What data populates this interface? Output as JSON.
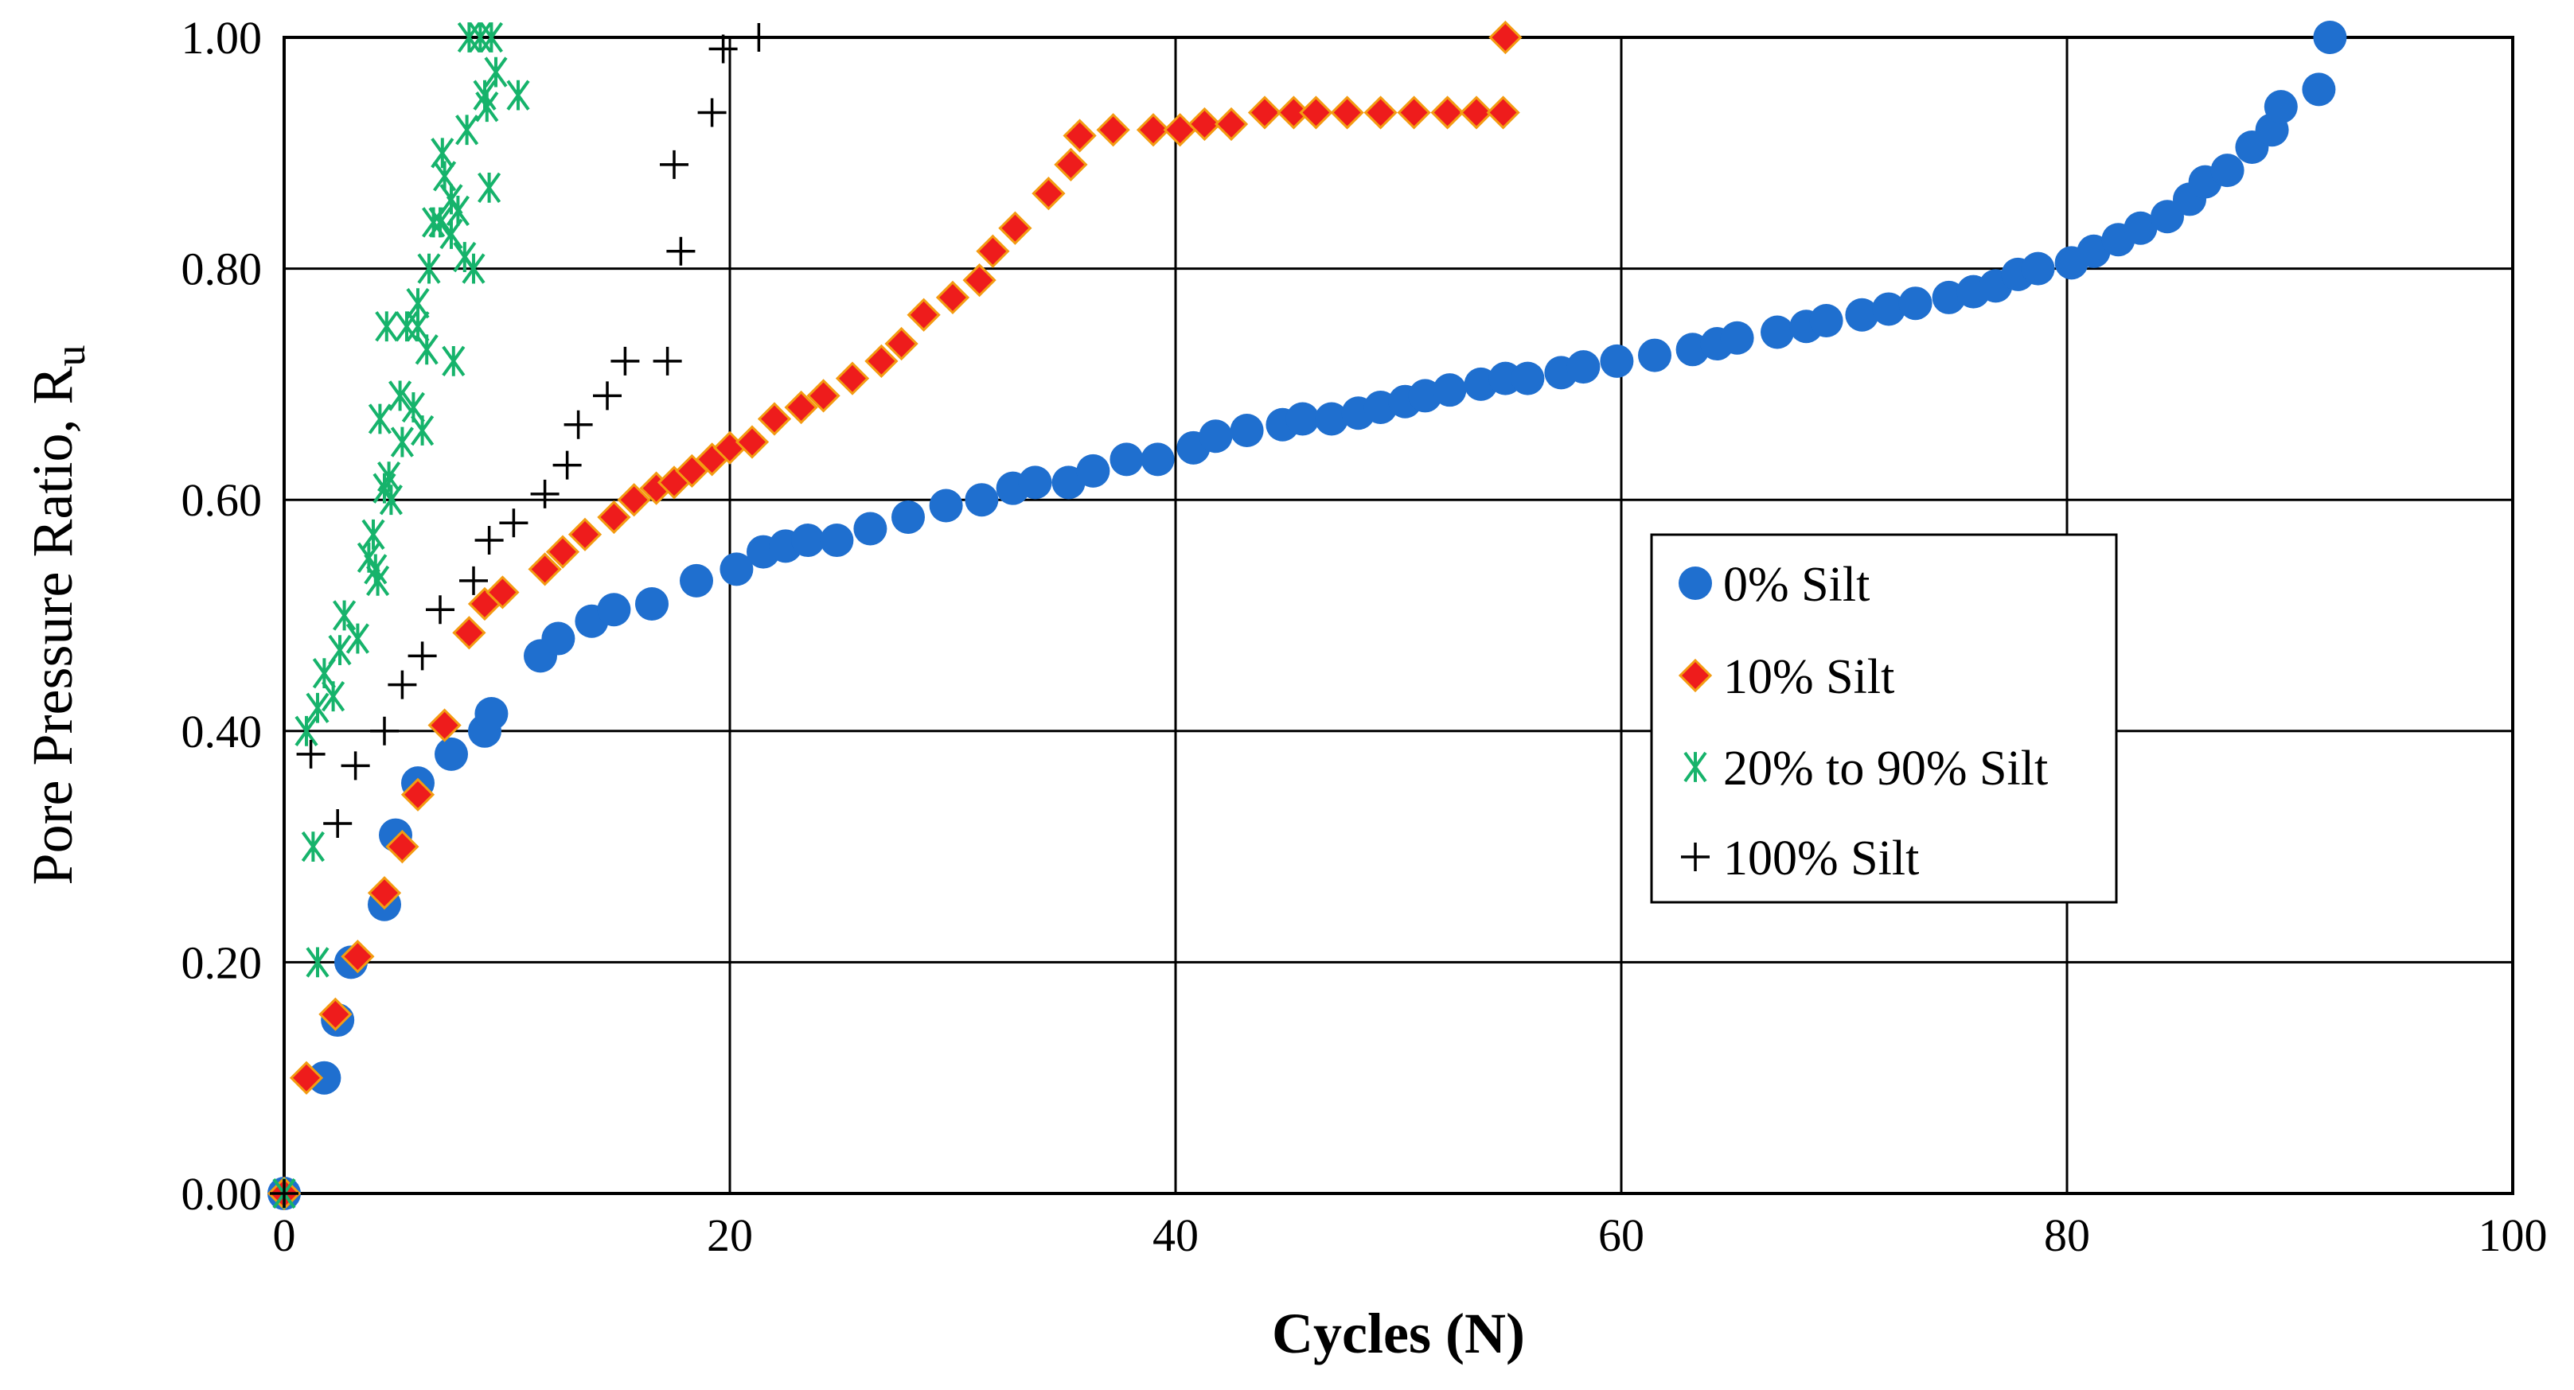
{
  "chart_data": {
    "type": "scatter",
    "xlabel": "Cycles (N)",
    "ylabel": "Pore Pressure Ratio, R",
    "ylabel_sub": "u",
    "xlim": [
      0,
      100
    ],
    "ylim": [
      0,
      1.0
    ],
    "x_ticks": [
      "0",
      "20",
      "40",
      "60",
      "80",
      "100"
    ],
    "y_ticks": [
      "0.00",
      "0.20",
      "0.40",
      "0.60",
      "0.80",
      "1.00"
    ],
    "grid": true,
    "legend_position": "center-right",
    "series": [
      {
        "name": "0% Silt",
        "marker": "circle",
        "color": "#1f6fcf",
        "points": [
          [
            0,
            0.0
          ],
          [
            1.8,
            0.1
          ],
          [
            2.4,
            0.15
          ],
          [
            3,
            0.2
          ],
          [
            4.5,
            0.25
          ],
          [
            5,
            0.31
          ],
          [
            6,
            0.355
          ],
          [
            7.5,
            0.38
          ],
          [
            9,
            0.4
          ],
          [
            9.3,
            0.415
          ],
          [
            11.5,
            0.465
          ],
          [
            12.3,
            0.48
          ],
          [
            13.8,
            0.495
          ],
          [
            14.8,
            0.505
          ],
          [
            16.5,
            0.51
          ],
          [
            18.5,
            0.53
          ],
          [
            20.3,
            0.54
          ],
          [
            21.5,
            0.555
          ],
          [
            22.5,
            0.56
          ],
          [
            23.5,
            0.565
          ],
          [
            24.8,
            0.565
          ],
          [
            26.3,
            0.575
          ],
          [
            28,
            0.585
          ],
          [
            29.7,
            0.595
          ],
          [
            31.3,
            0.6
          ],
          [
            32.7,
            0.61
          ],
          [
            33.7,
            0.615
          ],
          [
            35.2,
            0.615
          ],
          [
            36.3,
            0.625
          ],
          [
            37.8,
            0.635
          ],
          [
            39.2,
            0.635
          ],
          [
            40.8,
            0.645
          ],
          [
            41.8,
            0.655
          ],
          [
            43.2,
            0.66
          ],
          [
            44.8,
            0.665
          ],
          [
            45.7,
            0.67
          ],
          [
            47,
            0.67
          ],
          [
            48.2,
            0.675
          ],
          [
            49.2,
            0.68
          ],
          [
            50.3,
            0.685
          ],
          [
            51.2,
            0.69
          ],
          [
            52.3,
            0.695
          ],
          [
            53.7,
            0.7
          ],
          [
            54.8,
            0.705
          ],
          [
            55.8,
            0.705
          ],
          [
            57.3,
            0.71
          ],
          [
            58.3,
            0.715
          ],
          [
            59.8,
            0.72
          ],
          [
            61.5,
            0.725
          ],
          [
            63.2,
            0.73
          ],
          [
            64.3,
            0.735
          ],
          [
            65.2,
            0.74
          ],
          [
            67,
            0.745
          ],
          [
            68.3,
            0.75
          ],
          [
            69.2,
            0.755
          ],
          [
            70.8,
            0.76
          ],
          [
            72,
            0.765
          ],
          [
            73.2,
            0.77
          ],
          [
            74.7,
            0.775
          ],
          [
            75.8,
            0.78
          ],
          [
            76.8,
            0.785
          ],
          [
            77.8,
            0.795
          ],
          [
            78.7,
            0.8
          ],
          [
            80.2,
            0.805
          ],
          [
            81.2,
            0.815
          ],
          [
            82.3,
            0.825
          ],
          [
            83.3,
            0.835
          ],
          [
            84.5,
            0.845
          ],
          [
            85.5,
            0.86
          ],
          [
            86.2,
            0.875
          ],
          [
            87.2,
            0.885
          ],
          [
            88.3,
            0.905
          ],
          [
            89.2,
            0.92
          ],
          [
            89.6,
            0.94
          ],
          [
            91.3,
            0.955
          ],
          [
            91.8,
            1.0
          ]
        ]
      },
      {
        "name": "10% Silt",
        "marker": "diamond",
        "color": "#ee1c1c",
        "stroke": "#f39c12",
        "points": [
          [
            0,
            0.0
          ],
          [
            1,
            0.1
          ],
          [
            2.3,
            0.155
          ],
          [
            3.3,
            0.205
          ],
          [
            4.5,
            0.26
          ],
          [
            5.3,
            0.3
          ],
          [
            6,
            0.345
          ],
          [
            7.2,
            0.405
          ],
          [
            8.3,
            0.485
          ],
          [
            9,
            0.51
          ],
          [
            9.8,
            0.52
          ],
          [
            11.7,
            0.54
          ],
          [
            12.5,
            0.555
          ],
          [
            13.5,
            0.57
          ],
          [
            14.8,
            0.585
          ],
          [
            15.7,
            0.6
          ],
          [
            16.7,
            0.61
          ],
          [
            17.5,
            0.615
          ],
          [
            18.3,
            0.625
          ],
          [
            19.2,
            0.635
          ],
          [
            20,
            0.645
          ],
          [
            21,
            0.65
          ],
          [
            22,
            0.67
          ],
          [
            23.2,
            0.68
          ],
          [
            24.2,
            0.69
          ],
          [
            25.5,
            0.705
          ],
          [
            26.8,
            0.72
          ],
          [
            27.7,
            0.735
          ],
          [
            28.7,
            0.76
          ],
          [
            30,
            0.775
          ],
          [
            31.2,
            0.79
          ],
          [
            31.8,
            0.815
          ],
          [
            32.8,
            0.835
          ],
          [
            34.3,
            0.865
          ],
          [
            35.3,
            0.89
          ],
          [
            35.7,
            0.915
          ],
          [
            37.2,
            0.92
          ],
          [
            39,
            0.92
          ],
          [
            40.2,
            0.92
          ],
          [
            41.3,
            0.925
          ],
          [
            42.5,
            0.925
          ],
          [
            44,
            0.935
          ],
          [
            45.3,
            0.935
          ],
          [
            46.3,
            0.935
          ],
          [
            47.7,
            0.935
          ],
          [
            49.2,
            0.935
          ],
          [
            50.7,
            0.935
          ],
          [
            52.2,
            0.935
          ],
          [
            53.5,
            0.935
          ],
          [
            54.7,
            0.935
          ],
          [
            54.8,
            1.0
          ]
        ]
      },
      {
        "name": "20% to 90% Silt",
        "marker": "asterisk",
        "color": "#16b36b",
        "points": [
          [
            0,
            0.0
          ],
          [
            1,
            0.4
          ],
          [
            1.3,
            0.3
          ],
          [
            1.5,
            0.2
          ],
          [
            1.5,
            0.42
          ],
          [
            1.8,
            0.45
          ],
          [
            2.2,
            0.43
          ],
          [
            2.5,
            0.47
          ],
          [
            2.7,
            0.5
          ],
          [
            3.3,
            0.48
          ],
          [
            3.8,
            0.55
          ],
          [
            4,
            0.57
          ],
          [
            4.1,
            0.54
          ],
          [
            4.2,
            0.53
          ],
          [
            4.3,
            0.67
          ],
          [
            4.5,
            0.61
          ],
          [
            4.6,
            0.75
          ],
          [
            4.7,
            0.62
          ],
          [
            4.8,
            0.6
          ],
          [
            5.2,
            0.69
          ],
          [
            5.3,
            0.65
          ],
          [
            5.5,
            0.75
          ],
          [
            5.8,
            0.68
          ],
          [
            6,
            0.75
          ],
          [
            6,
            0.77
          ],
          [
            6.2,
            0.66
          ],
          [
            6.4,
            0.73
          ],
          [
            6.5,
            0.8
          ],
          [
            6.7,
            0.84
          ],
          [
            7,
            0.84
          ],
          [
            7.1,
            0.9
          ],
          [
            7.2,
            0.88
          ],
          [
            7.5,
            0.86
          ],
          [
            7.5,
            0.83
          ],
          [
            7.6,
            0.72
          ],
          [
            7.8,
            0.85
          ],
          [
            8.1,
            0.81
          ],
          [
            8.2,
            0.92
          ],
          [
            8.3,
            1.0
          ],
          [
            8.5,
            0.8
          ],
          [
            8.8,
            1.0
          ],
          [
            9,
            0.95
          ],
          [
            9.1,
            0.94
          ],
          [
            9.3,
            1.0
          ],
          [
            9.5,
            0.97
          ],
          [
            10.5,
            0.95
          ],
          [
            9.2,
            0.87
          ]
        ]
      },
      {
        "name": "100% Silt",
        "marker": "plus",
        "color": "#000000",
        "points": [
          [
            0,
            0.0
          ],
          [
            1.2,
            0.38
          ],
          [
            2.4,
            0.32
          ],
          [
            3.2,
            0.37
          ],
          [
            4.5,
            0.4
          ],
          [
            5.3,
            0.44
          ],
          [
            6.2,
            0.465
          ],
          [
            7,
            0.505
          ],
          [
            8.5,
            0.53
          ],
          [
            9.2,
            0.565
          ],
          [
            10.3,
            0.58
          ],
          [
            11.7,
            0.605
          ],
          [
            12.7,
            0.63
          ],
          [
            13.2,
            0.665
          ],
          [
            14.5,
            0.69
          ],
          [
            15.3,
            0.72
          ],
          [
            17.2,
            0.72
          ],
          [
            17.5,
            0.89
          ],
          [
            17.8,
            0.815
          ],
          [
            19.2,
            0.935
          ],
          [
            19.7,
            0.99
          ],
          [
            21.3,
            1.0
          ]
        ]
      }
    ]
  }
}
